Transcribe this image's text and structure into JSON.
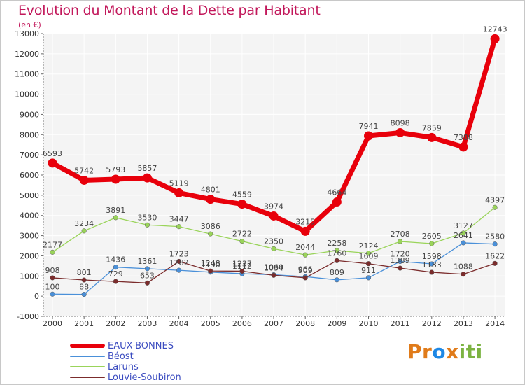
{
  "title": "Evolution du Montant de la Dette par Habitant",
  "subtitle": "(en €)",
  "brand": {
    "p": "Pr",
    "o": "o",
    "x": "x",
    "i": "iti"
  },
  "chart_data": {
    "type": "line",
    "title": "Evolution du Montant de la Dette par Habitant",
    "ylabel": "(en €)",
    "xlabel": "",
    "ylim": [
      -1000,
      13000
    ],
    "yticks": [
      -1000,
      0,
      1000,
      2000,
      3000,
      4000,
      5000,
      6000,
      7000,
      8000,
      9000,
      10000,
      11000,
      12000,
      13000
    ],
    "categories": [
      "2000",
      "2001",
      "2002",
      "2003",
      "2004",
      "2005",
      "2006",
      "2007",
      "2008",
      "2009",
      "2010",
      "2011",
      "2012",
      "2013",
      "2014"
    ],
    "legend_position": "bottom-left",
    "series": [
      {
        "name": "EAUX-BONNES",
        "color": "#e8000b",
        "values": [
          6593,
          5742,
          5793,
          5857,
          5119,
          4801,
          4559,
          3974,
          3215,
          4664,
          7941,
          8098,
          7859,
          7388,
          12743
        ]
      },
      {
        "name": "Béost",
        "color": "#4a90d9",
        "values": [
          100,
          88,
          1436,
          1361,
          1282,
          1190,
          1112,
          1060,
          966,
          809,
          911,
          1720,
          1598,
          2641,
          2580
        ]
      },
      {
        "name": "Laruns",
        "color": "#9ad45a",
        "values": [
          2177,
          3234,
          3891,
          3530,
          3447,
          3086,
          2722,
          2350,
          2044,
          2258,
          2124,
          2708,
          2605,
          3127,
          4397
        ]
      },
      {
        "name": "Louvie-Soubiron",
        "color": "#7b2c2c",
        "values": [
          908,
          801,
          729,
          653,
          1723,
          1248,
          1237,
          1034,
          909,
          1760,
          1609,
          1389,
          1183,
          1088,
          1622
        ]
      }
    ]
  }
}
